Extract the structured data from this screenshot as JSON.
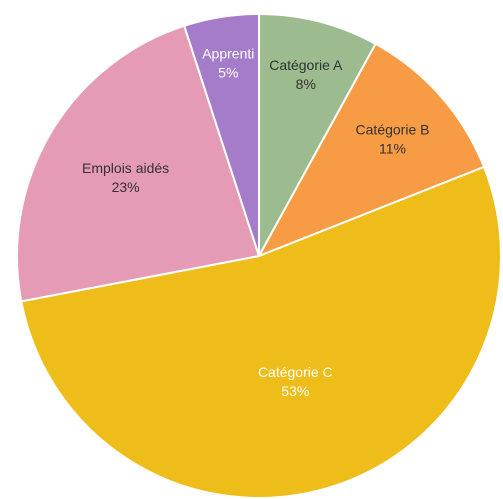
{
  "chart_data": {
    "type": "pie",
    "slices": [
      {
        "label": "Catégorie A",
        "value": 8,
        "display": "8%",
        "color": "#9cbb8f",
        "label_color": "#333333"
      },
      {
        "label": "Catégorie B",
        "value": 11,
        "display": "11%",
        "color": "#f79b45",
        "label_color": "#333333"
      },
      {
        "label": "Catégorie C",
        "value": 53,
        "display": "53%",
        "color": "#efbd19",
        "label_color": "#ffffff"
      },
      {
        "label": "Emplois aidés",
        "value": 23,
        "display": "23%",
        "color": "#e59ab6",
        "label_color": "#333333"
      },
      {
        "label": "Apprenti",
        "value": 5,
        "display": "5%",
        "color": "#a57cc9",
        "label_color": "#ffffff"
      }
    ],
    "start_angle_deg": 0,
    "direction": "clockwise",
    "legend": "none"
  }
}
